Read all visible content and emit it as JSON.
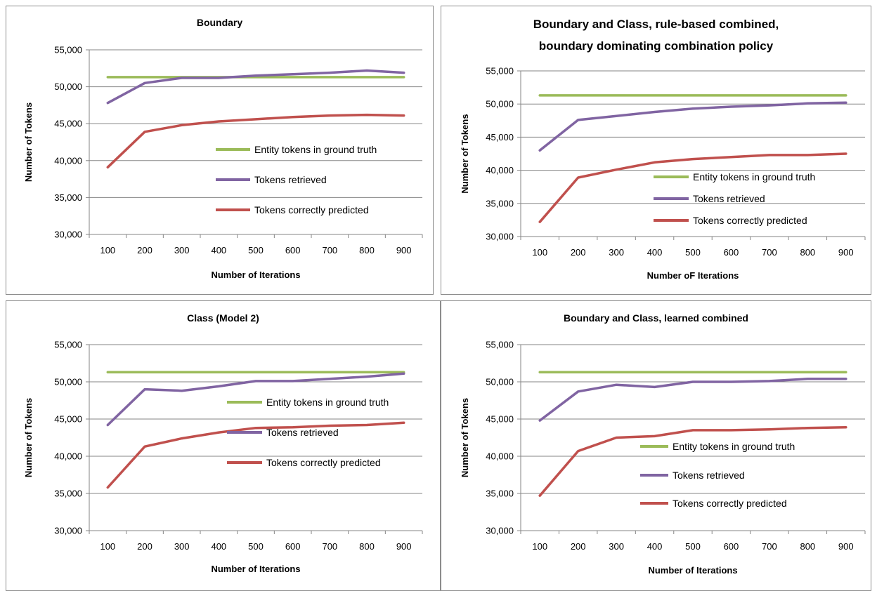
{
  "colors": {
    "ground_truth": "#9bbb59",
    "retrieved": "#8064a2",
    "correct": "#c0504d",
    "grid": "#868686",
    "border": "#8c8c8c"
  },
  "chart_data": [
    {
      "type": "line",
      "title": "Boundary",
      "xlabel": "Number of Iterations",
      "ylabel": "Number of Tokens",
      "categories": [
        "100",
        "200",
        "300",
        "400",
        "500",
        "600",
        "700",
        "800",
        "900"
      ],
      "ylim": [
        30000,
        55000
      ],
      "yticks": [
        30000,
        35000,
        40000,
        45000,
        50000,
        55000
      ],
      "ytick_labels": [
        "30,000",
        "35,000",
        "40,000",
        "45,000",
        "50,000",
        "55,000"
      ],
      "grid": true,
      "legend_position": "right",
      "series": [
        {
          "name": "Entity tokens in ground truth",
          "values": [
            51300,
            51300,
            51300,
            51300,
            51300,
            51300,
            51300,
            51300,
            51300
          ]
        },
        {
          "name": "Tokens retrieved",
          "values": [
            47800,
            50500,
            51200,
            51200,
            51500,
            51700,
            51900,
            52200,
            51900
          ]
        },
        {
          "name": "Tokens correctly predicted",
          "values": [
            39100,
            43900,
            44800,
            45300,
            45600,
            45900,
            46100,
            46200,
            46100
          ]
        }
      ]
    },
    {
      "type": "line",
      "title": "Boundary and Class, rule-based combined, boundary dominating combination policy",
      "title_lines": [
        "Boundary and Class, rule-based combined,",
        "boundary dominating combination policy"
      ],
      "xlabel": "Number oF Iterations",
      "ylabel": "Number of Tokens",
      "categories": [
        "100",
        "200",
        "300",
        "400",
        "500",
        "600",
        "700",
        "800",
        "900"
      ],
      "ylim": [
        30000,
        55000
      ],
      "yticks": [
        30000,
        35000,
        40000,
        45000,
        50000,
        55000
      ],
      "ytick_labels": [
        "30,000",
        "35,000",
        "40,000",
        "45,000",
        "50,000",
        "55,000"
      ],
      "grid": true,
      "legend_position": "right",
      "series": [
        {
          "name": "Entity tokens in ground truth",
          "values": [
            51300,
            51300,
            51300,
            51300,
            51300,
            51300,
            51300,
            51300,
            51300
          ]
        },
        {
          "name": "Tokens retrieved",
          "values": [
            43000,
            47600,
            48200,
            48800,
            49300,
            49600,
            49800,
            50100,
            50200
          ]
        },
        {
          "name": "Tokens correctly predicted",
          "values": [
            32200,
            38900,
            40100,
            41200,
            41700,
            42000,
            42300,
            42300,
            42500
          ]
        }
      ]
    },
    {
      "type": "line",
      "title": "Class (Model 2)",
      "xlabel": "Number of Iterations",
      "ylabel": "Number of Tokens",
      "categories": [
        "100",
        "200",
        "300",
        "400",
        "500",
        "600",
        "700",
        "800",
        "900"
      ],
      "ylim": [
        30000,
        55000
      ],
      "yticks": [
        30000,
        35000,
        40000,
        45000,
        50000,
        55000
      ],
      "ytick_labels": [
        "30,000",
        "35,000",
        "40,000",
        "45,000",
        "50,000",
        "55,000"
      ],
      "grid": true,
      "legend_position": "right",
      "series": [
        {
          "name": "Entity tokens in ground truth",
          "values": [
            51300,
            51300,
            51300,
            51300,
            51300,
            51300,
            51300,
            51300,
            51300
          ]
        },
        {
          "name": "Tokens retrieved",
          "values": [
            44200,
            49000,
            48800,
            49400,
            50100,
            50100,
            50400,
            50700,
            51100
          ]
        },
        {
          "name": "Tokens correctly predicted",
          "values": [
            35800,
            41300,
            42400,
            43200,
            43800,
            43900,
            44100,
            44200,
            44500
          ]
        }
      ]
    },
    {
      "type": "line",
      "title": "Boundary and Class, learned combined",
      "xlabel": "Number of Iterations",
      "ylabel": "Number of Tokens",
      "categories": [
        "100",
        "200",
        "300",
        "400",
        "500",
        "600",
        "700",
        "800",
        "900"
      ],
      "ylim": [
        30000,
        55000
      ],
      "yticks": [
        30000,
        35000,
        40000,
        45000,
        50000,
        55000
      ],
      "ytick_labels": [
        "30,000",
        "35,000",
        "40,000",
        "45,000",
        "50,000",
        "55,000"
      ],
      "grid": true,
      "legend_position": "right",
      "series": [
        {
          "name": "Entity tokens in ground truth",
          "values": [
            51300,
            51300,
            51300,
            51300,
            51300,
            51300,
            51300,
            51300,
            51300
          ]
        },
        {
          "name": "Tokens retrieved",
          "values": [
            44800,
            48700,
            49600,
            49300,
            50000,
            50000,
            50100,
            50400,
            50400
          ]
        },
        {
          "name": "Tokens correctly predicted",
          "values": [
            34700,
            40700,
            42500,
            42700,
            43500,
            43500,
            43600,
            43800,
            43900
          ]
        }
      ]
    }
  ]
}
